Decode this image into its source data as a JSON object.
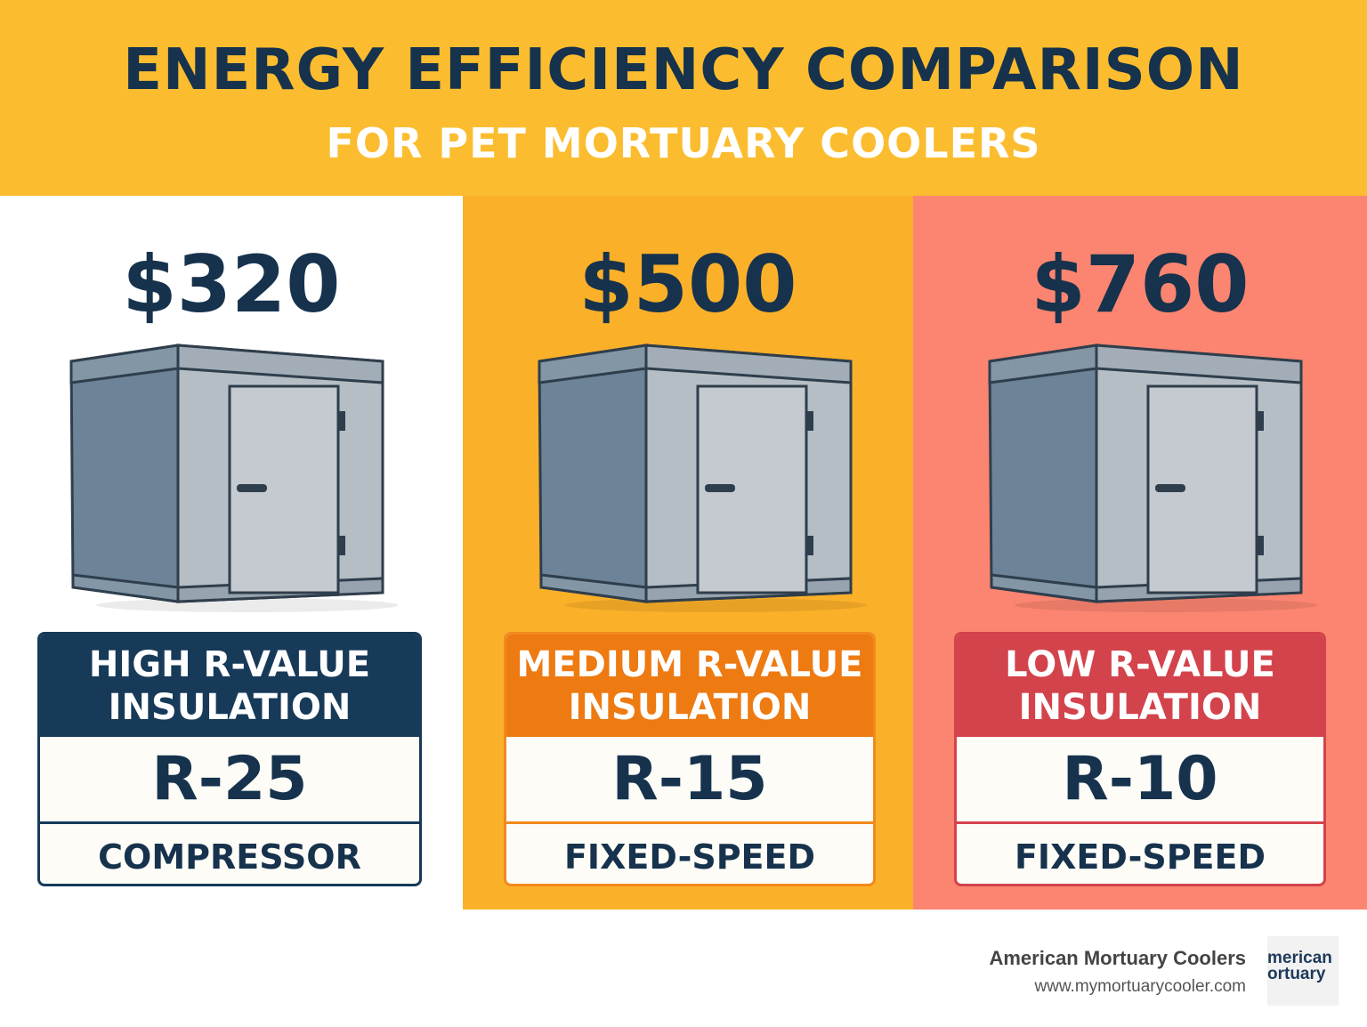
{
  "header": {
    "title": "ENERGY EFFICIENCY COMPARISON",
    "subtitle": "FOR PET MORTUARY COOLERS"
  },
  "columns": [
    {
      "price": "$320",
      "insulation": [
        "HIGH R-VALUE",
        "INSULATION"
      ],
      "r_value": "R-25",
      "compressor": "COMPRESSOR"
    },
    {
      "price": "$500",
      "insulation": [
        "MEDIUM R-VALUE",
        "INSULATION"
      ],
      "r_value": "R-15",
      "compressor": "FIXED-SPEED"
    },
    {
      "price": "$760",
      "insulation": [
        "LOW R-VALUE",
        "INSULATION"
      ],
      "r_value": "R-10",
      "compressor": "FIXED-SPEED"
    }
  ],
  "footer": {
    "company": "American Mortuary Coolers",
    "website": "www.mymortuarycooler.com",
    "logo": [
      "merican",
      "ortuary"
    ]
  }
}
